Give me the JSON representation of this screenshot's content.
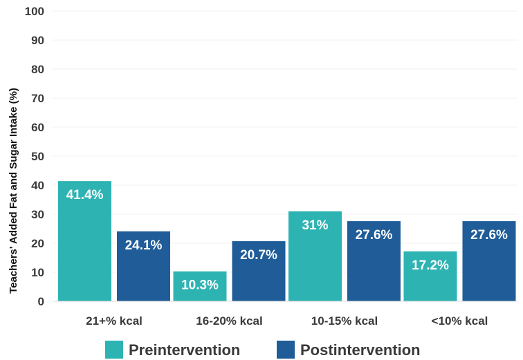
{
  "chart_data": {
    "type": "bar",
    "ylabel": "Teachers' Added Fat and Sugar Intake (%)",
    "xlabel": "",
    "ylim": [
      0,
      100
    ],
    "yticks": [
      0,
      10,
      20,
      30,
      40,
      50,
      60,
      70,
      80,
      90,
      100
    ],
    "grid": true,
    "legend_position": "bottom",
    "categories": [
      "21+% kcal",
      "16-20% kcal",
      "10-15% kcal",
      "<10% kcal"
    ],
    "series": [
      {
        "name": "Preintervention",
        "color": "#2eb3b3",
        "values": [
          41.4,
          10.3,
          31,
          17.2
        ],
        "labels": [
          "41.4%",
          "10.3%",
          "31%",
          "17.2%"
        ]
      },
      {
        "name": "Postintervention",
        "color": "#1f5c98",
        "values": [
          24.1,
          20.7,
          27.6,
          27.6
        ],
        "labels": [
          "24.1%",
          "20.7%",
          "27.6%",
          "27.6%"
        ]
      }
    ]
  }
}
